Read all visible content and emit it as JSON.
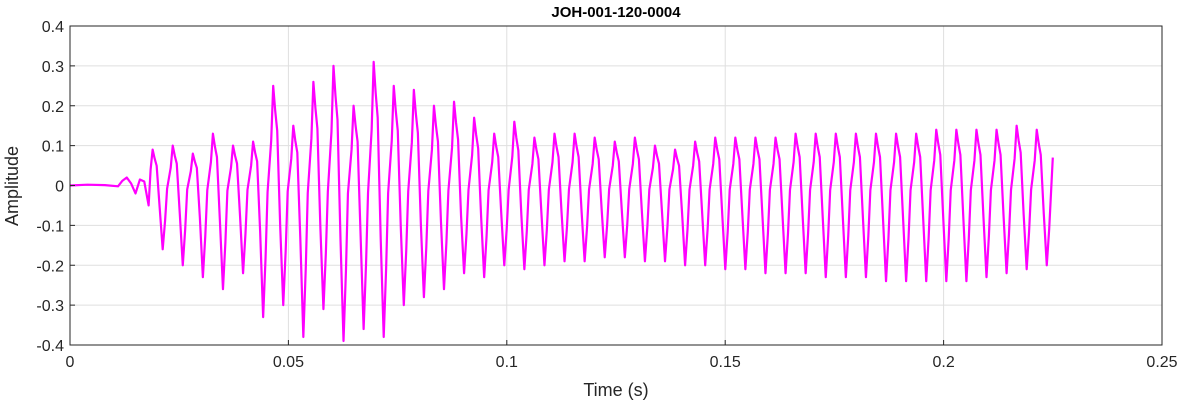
{
  "chart_data": {
    "type": "line",
    "title": "JOH-001-120-0004",
    "xlabel": "Time (s)",
    "ylabel": "Amplitude",
    "xlim": [
      0,
      0.25
    ],
    "ylim": [
      -0.4,
      0.4
    ],
    "x_ticks": [
      0,
      0.05,
      0.1,
      0.15,
      0.2,
      0.25
    ],
    "x_tick_labels": [
      "0",
      "0.05",
      "0.1",
      "0.15",
      "0.2",
      "0.25"
    ],
    "y_ticks": [
      0.4,
      0.3,
      0.2,
      0.1,
      0,
      -0.1,
      -0.2,
      -0.3,
      -0.4
    ],
    "y_tick_labels": [
      "0.4",
      "0.3",
      "0.2",
      "0.1",
      "0",
      "-0.1",
      "-0.2",
      "-0.3",
      "-0.4"
    ],
    "grid": true,
    "line_color": "#ff00ff",
    "series": [
      {
        "onset_segment": {
          "t": [
            0,
            0.004,
            0.008,
            0.011,
            0.012,
            0.013,
            0.014,
            0.015,
            0.016,
            0.017,
            0.018
          ],
          "y": [
            0,
            0.002,
            0.001,
            -0.002,
            0.012,
            0.02,
            0.005,
            -0.02,
            0.015,
            0.01,
            -0.05
          ]
        },
        "cycles": {
          "t0": 0.018,
          "t_end": 0.225,
          "period_s": 0.0046,
          "peaks": [
            0.09,
            0.1,
            0.08,
            0.13,
            0.1,
            0.11,
            0.25,
            0.15,
            0.26,
            0.3,
            0.2,
            0.31,
            0.25,
            0.24,
            0.2,
            0.21,
            0.17,
            0.13,
            0.16,
            0.12,
            0.13,
            0.13,
            0.12,
            0.11,
            0.12,
            0.1,
            0.09,
            0.11,
            0.12,
            0.12,
            0.12,
            0.12,
            0.13,
            0.13,
            0.13,
            0.13,
            0.13,
            0.13,
            0.13,
            0.14,
            0.14,
            0.14,
            0.14,
            0.15,
            0.14,
            0.13,
            0.12,
            0.11,
            0.1,
            0.1
          ],
          "troughs": [
            -0.16,
            -0.2,
            -0.23,
            -0.26,
            -0.22,
            -0.33,
            -0.3,
            -0.38,
            -0.31,
            -0.39,
            -0.36,
            -0.38,
            -0.3,
            -0.28,
            -0.26,
            -0.22,
            -0.23,
            -0.2,
            -0.21,
            -0.2,
            -0.19,
            -0.19,
            -0.18,
            -0.18,
            -0.19,
            -0.19,
            -0.2,
            -0.2,
            -0.21,
            -0.21,
            -0.22,
            -0.22,
            -0.22,
            -0.23,
            -0.23,
            -0.23,
            -0.24,
            -0.24,
            -0.24,
            -0.24,
            -0.24,
            -0.23,
            -0.22,
            -0.21,
            -0.2,
            -0.17,
            -0.15,
            -0.13,
            -0.12,
            -0.1
          ]
        },
        "final_value": 0.07
      }
    ]
  }
}
